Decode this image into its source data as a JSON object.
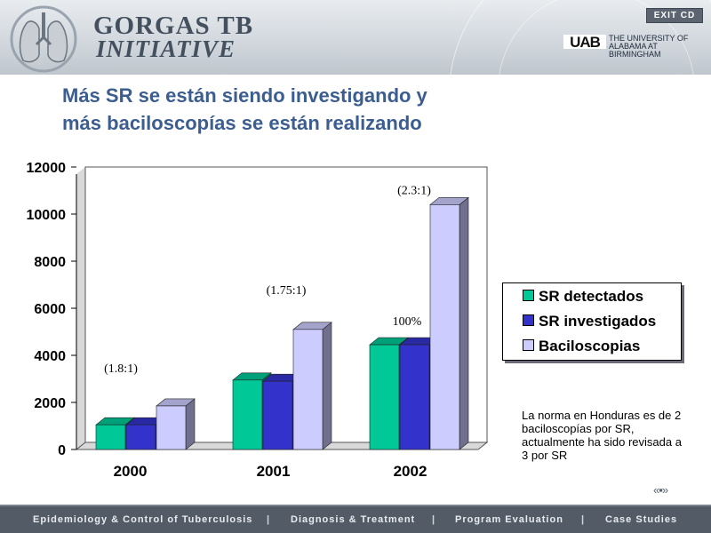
{
  "header": {
    "title_line1": "GORGAS TB",
    "title_line2": "INITIATIVE",
    "exit_label": "EXIT CD",
    "uab_line1": "THE UNIVERSITY OF",
    "uab_line2": "ALABAMA AT BIRMINGHAM"
  },
  "slide": {
    "title_line1": "Más SR se están siendo investigando y",
    "title_line2": "más baciloscopías se están realizando"
  },
  "chart_data": {
    "type": "bar",
    "categories": [
      "2000",
      "2001",
      "2002"
    ],
    "series": [
      {
        "name": "SR detectados",
        "color": "#00c896",
        "values": [
          1050,
          2950,
          4450
        ]
      },
      {
        "name": "SR investigados",
        "color": "#3333cc",
        "values": [
          1050,
          2900,
          4450
        ]
      },
      {
        "name": "Baciloscopias",
        "color": "#ccccff",
        "values": [
          1850,
          5100,
          10400
        ]
      }
    ],
    "ylim": [
      0,
      12000
    ],
    "yticks": [
      "0",
      "2000",
      "4000",
      "6000",
      "8000",
      "10000",
      "12000"
    ],
    "annotations": [
      "(1.8:1)",
      "(1.75:1)",
      "100%",
      "(2.3:1)"
    ],
    "legend_position": "right"
  },
  "note": "La norma en Honduras es de 2 baciloscopías por SR, actualmente ha sido revisada a 3 por SR",
  "nav": {
    "arrows": "«▪»"
  },
  "footer": {
    "items": [
      "Epidemiology & Control of Tuberculosis",
      "Diagnosis & Treatment",
      "Program Evaluation",
      "Case Studies"
    ],
    "separator": "|"
  }
}
